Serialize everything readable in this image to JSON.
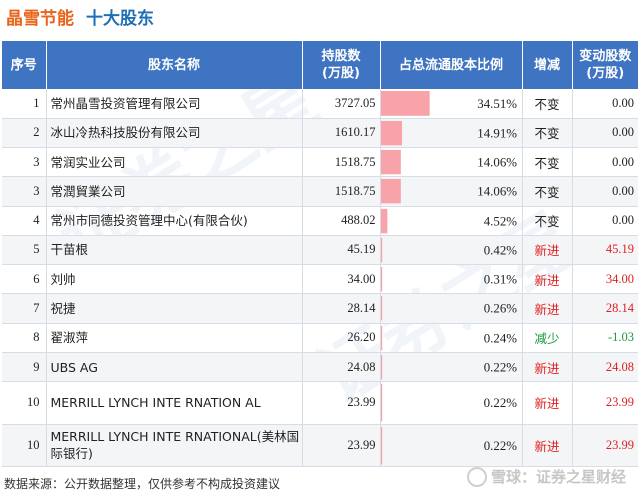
{
  "title": {
    "stock_name": "晶雪节能",
    "subtitle": "十大股东"
  },
  "columns": {
    "rank": "序号",
    "name": "股东名称",
    "shares": "持股数\n(万股)",
    "ratio": "占总流通股本比例",
    "change": "增减",
    "delta": "变动股数\n(万股)"
  },
  "chart_data": {
    "type": "table",
    "ratio_unit": "%",
    "ratio_scale_max": 100,
    "bar_color": "#f7a3a9",
    "status_colors": {
      "不变": "#222222",
      "新进": "#e02020",
      "减少": "#1a9a3a"
    },
    "rows": [
      {
        "rank": "1",
        "name": "常州晶雪投资管理有限公司",
        "shares": "3727.05",
        "ratio": 34.51,
        "ratio_label": "34.51%",
        "change": "不变",
        "delta": "0.00"
      },
      {
        "rank": "2",
        "name": "冰山冷热科技股份有限公司",
        "shares": "1610.17",
        "ratio": 14.91,
        "ratio_label": "14.91%",
        "change": "不变",
        "delta": "0.00"
      },
      {
        "rank": "3",
        "name": "常润实业公司",
        "shares": "1518.75",
        "ratio": 14.06,
        "ratio_label": "14.06%",
        "change": "不变",
        "delta": "0.00"
      },
      {
        "rank": "3",
        "name": "常潤貿業公司",
        "shares": "1518.75",
        "ratio": 14.06,
        "ratio_label": "14.06%",
        "change": "不变",
        "delta": "0.00"
      },
      {
        "rank": "4",
        "name": "常州市同德投资管理中心(有限合伙)",
        "shares": "488.02",
        "ratio": 4.52,
        "ratio_label": "4.52%",
        "change": "不变",
        "delta": "0.00"
      },
      {
        "rank": "5",
        "name": "干苗根",
        "shares": "45.19",
        "ratio": 0.42,
        "ratio_label": "0.42%",
        "change": "新进",
        "delta": "45.19"
      },
      {
        "rank": "6",
        "name": "刘帅",
        "shares": "34.00",
        "ratio": 0.31,
        "ratio_label": "0.31%",
        "change": "新进",
        "delta": "34.00"
      },
      {
        "rank": "7",
        "name": "祝捷",
        "shares": "28.14",
        "ratio": 0.26,
        "ratio_label": "0.26%",
        "change": "新进",
        "delta": "28.14"
      },
      {
        "rank": "8",
        "name": "翟淑萍",
        "shares": "26.20",
        "ratio": 0.24,
        "ratio_label": "0.24%",
        "change": "减少",
        "delta": "-1.03"
      },
      {
        "rank": "9",
        "name": "UBS AG",
        "shares": "24.08",
        "ratio": 0.22,
        "ratio_label": "0.22%",
        "change": "新进",
        "delta": "24.08"
      },
      {
        "rank": "10",
        "name": "MERRILL LYNCH INTE\nRNATION AL",
        "shares": "23.99",
        "ratio": 0.22,
        "ratio_label": "0.22%",
        "change": "新进",
        "delta": "23.99"
      },
      {
        "rank": "10",
        "name": "MERRILL LYNCH INTE\nRNATIONAL(美林国际银行)",
        "shares": "23.99",
        "ratio": 0.22,
        "ratio_label": "0.22%",
        "change": "新进",
        "delta": "23.99"
      }
    ]
  },
  "footer": {
    "source": "数据来源：公开数据整理，仅供参考不构成投资建议",
    "brand": "雪球：证券之星财经"
  }
}
